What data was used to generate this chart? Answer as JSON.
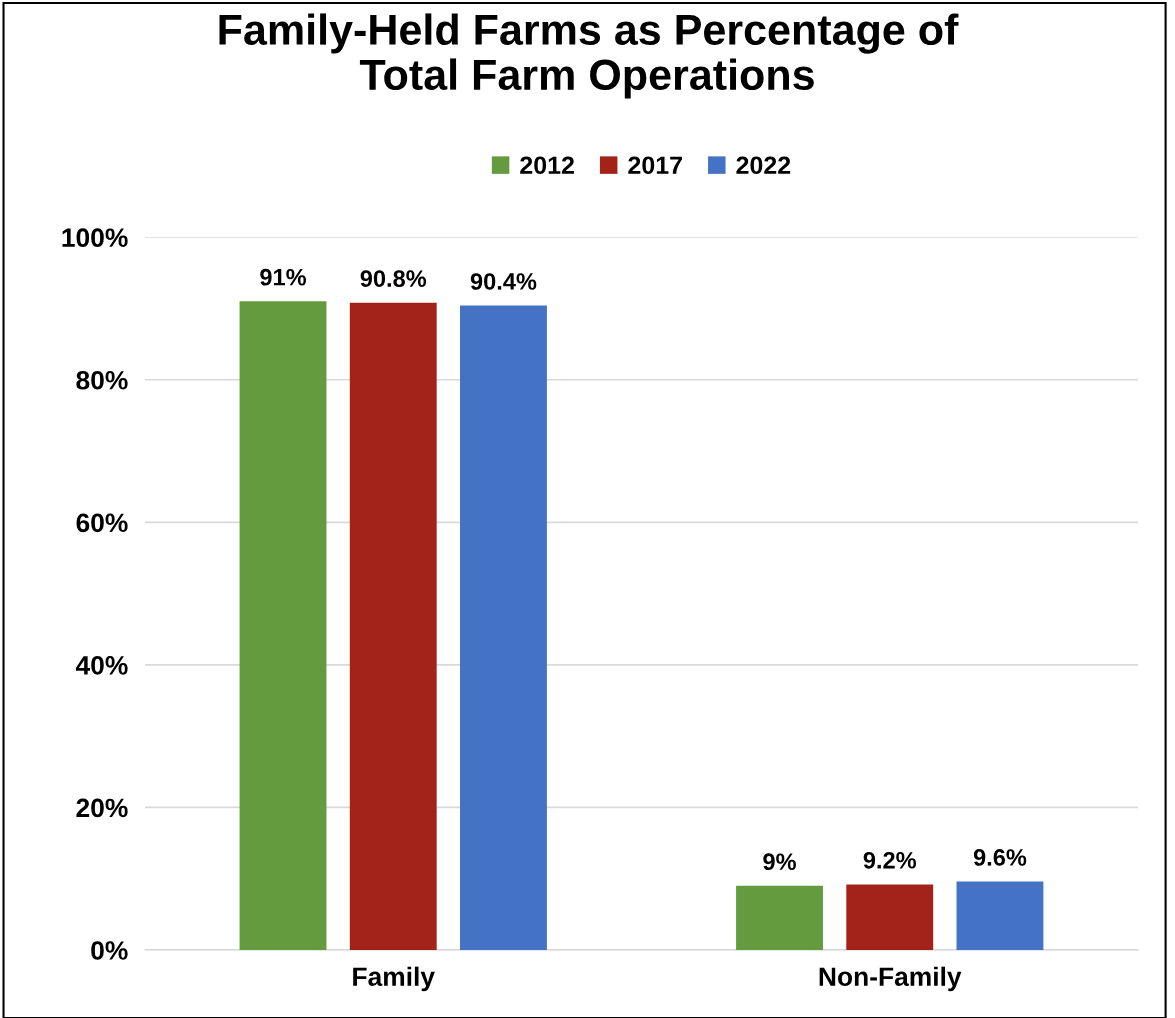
{
  "chart_data": {
    "type": "bar",
    "title": "Family-Held Farms as Percentage of\nTotal Farm Operations",
    "categories": [
      "Family",
      "Non-Family"
    ],
    "series": [
      {
        "name": "2012",
        "color": "#659b3f",
        "values": [
          91,
          9
        ],
        "value_labels": [
          "91%",
          "9%"
        ]
      },
      {
        "name": "2017",
        "color": "#a32219",
        "values": [
          90.8,
          9.2
        ],
        "value_labels": [
          "90.8%",
          "9.2%"
        ]
      },
      {
        "name": "2022",
        "color": "#4472c4",
        "values": [
          90.4,
          9.6
        ],
        "value_labels": [
          "90.4%",
          "9.6%"
        ]
      }
    ],
    "ylim": [
      0,
      100
    ],
    "yticks": [
      {
        "value": 0,
        "label": "0%"
      },
      {
        "value": 20,
        "label": "20%"
      },
      {
        "value": 40,
        "label": "40%"
      },
      {
        "value": 60,
        "label": "60%"
      },
      {
        "value": 80,
        "label": "80%"
      },
      {
        "value": 100,
        "label": "100%"
      }
    ],
    "grid": "y",
    "legend": "top"
  }
}
